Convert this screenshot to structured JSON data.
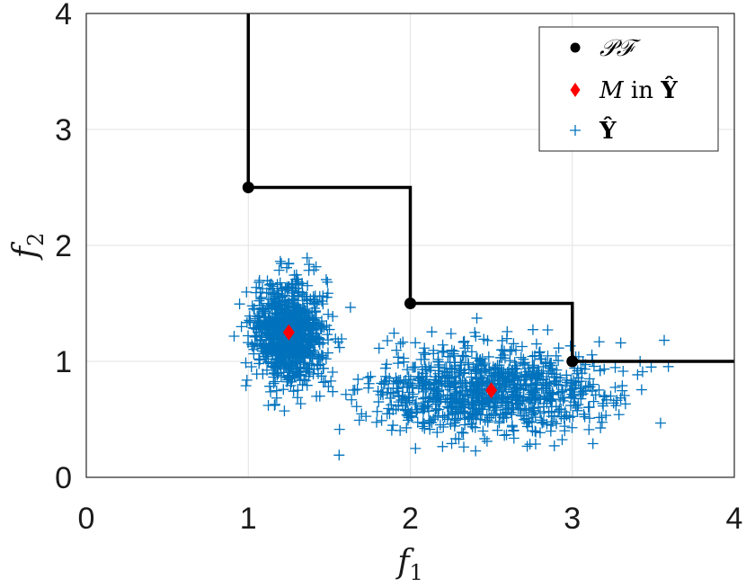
{
  "chart_data": {
    "type": "scatter",
    "title": "",
    "xlabel": "f",
    "xlabel_sub": "1",
    "ylabel": "f",
    "ylabel_sub": "2",
    "xlim": [
      0,
      4
    ],
    "ylim": [
      0,
      4
    ],
    "xticks": [
      "0",
      "1",
      "2",
      "3",
      "4"
    ],
    "yticks": [
      "0",
      "1",
      "2",
      "3",
      "4"
    ],
    "grid": true,
    "legend_position": "top-right",
    "colors": {
      "pareto": "#000000",
      "mean": "#ff0000",
      "samples": "#0072BD"
    },
    "series": [
      {
        "name": "𝒫ℱ",
        "legend_label": "𝒫ℱ",
        "marker": "circle",
        "points": [
          [
            1,
            2.5
          ],
          [
            2,
            1.5
          ],
          [
            3,
            1
          ]
        ],
        "staircase": [
          [
            1,
            4
          ],
          [
            1,
            2.5
          ],
          [
            2,
            2.5
          ],
          [
            2,
            1.5
          ],
          [
            3,
            1.5
          ],
          [
            3,
            1
          ],
          [
            4,
            1
          ]
        ]
      },
      {
        "name": "M in Ŷ",
        "legend_label_parts": [
          "M",
          " in ",
          "Ŷ"
        ],
        "marker": "diamond",
        "points": [
          [
            1.25,
            1.25
          ],
          [
            2.5,
            0.75
          ]
        ]
      },
      {
        "name": "Ŷ",
        "legend_label": "Ŷ",
        "marker": "plus",
        "clusters": [
          {
            "center": [
              1.25,
              1.25
            ],
            "spread": [
              0.11,
              0.22
            ],
            "count": 900
          },
          {
            "center": [
              2.5,
              0.75
            ],
            "spread": [
              0.36,
              0.19
            ],
            "count": 1000
          }
        ]
      }
    ]
  }
}
